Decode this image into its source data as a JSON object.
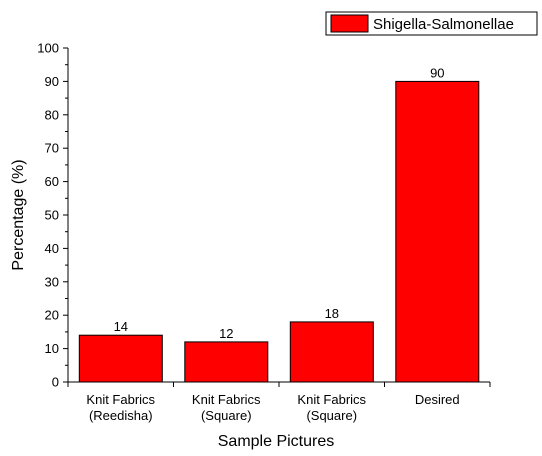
{
  "chart_data": {
    "type": "bar",
    "categories": [
      [
        "Knit Fabrics",
        "(Reedisha)"
      ],
      [
        "Knit Fabrics",
        "(Square)"
      ],
      [
        "Knit Fabrics",
        "(Square)"
      ],
      [
        "Desired"
      ]
    ],
    "series": [
      {
        "name": "Shigella-Salmonellae",
        "values": [
          14,
          12,
          18,
          90
        ],
        "color": "#ff0000"
      }
    ],
    "data_labels": [
      "14",
      "12",
      "18",
      "90"
    ],
    "title": "",
    "xlabel": "Sample Pictures",
    "ylabel": "Percentage (%)",
    "ylim": [
      0,
      100
    ],
    "yticks": [
      0,
      10,
      20,
      30,
      40,
      50,
      60,
      70,
      80,
      90,
      100
    ],
    "ytick_labels": [
      "0",
      "10",
      "20",
      "30",
      "40",
      "50",
      "60",
      "70",
      "80",
      "90",
      "100"
    ],
    "grid": false,
    "legend_position": "top-right"
  }
}
